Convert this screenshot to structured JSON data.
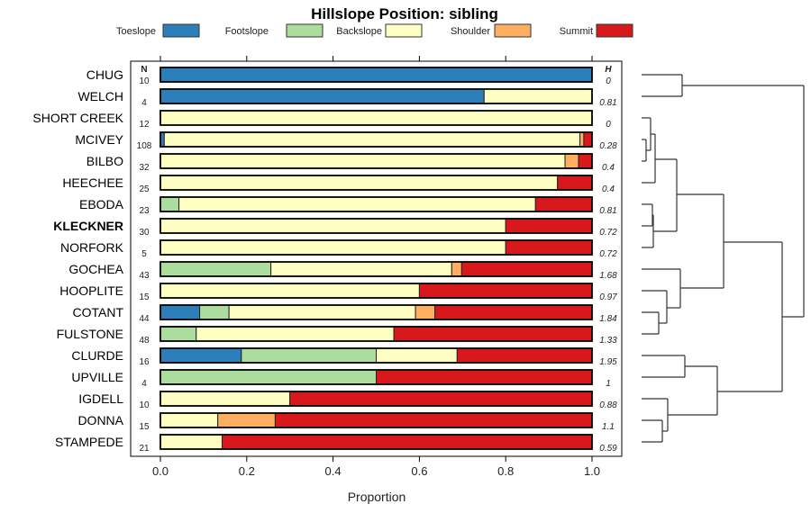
{
  "chart_data": {
    "type": "bar",
    "orientation": "horizontal-stacked",
    "title": "Hillslope Position: sibling",
    "xlabel": "Proportion",
    "xlim": [
      0,
      1
    ],
    "x_ticks": [
      "0.0",
      "0.2",
      "0.4",
      "0.6",
      "0.8",
      "1.0"
    ],
    "n_header": "N",
    "h_header": "H",
    "legend_position": "top",
    "series": [
      {
        "name": "Toeslope",
        "color": "#2C7FB8"
      },
      {
        "name": "Footslope",
        "color": "#ADDD9E"
      },
      {
        "name": "Backslope",
        "color": "#FFFFC4"
      },
      {
        "name": "Shoulder",
        "color": "#FDAE61"
      },
      {
        "name": "Summit",
        "color": "#D7191C"
      }
    ],
    "rows": [
      {
        "name": "CHUG",
        "n": "10",
        "h": "0",
        "values": [
          1,
          0,
          0,
          0,
          0
        ]
      },
      {
        "name": "WELCH",
        "n": "4",
        "h": "0.81",
        "values": [
          0.75,
          0,
          0.25,
          0,
          0
        ]
      },
      {
        "name": "SHORT CREEK",
        "n": "12",
        "h": "0",
        "values": [
          0,
          0,
          1,
          0,
          0
        ]
      },
      {
        "name": "MCIVEY",
        "n": "108",
        "h": "0.28",
        "values": [
          0.009,
          0,
          0.963,
          0.009,
          0.019
        ]
      },
      {
        "name": "BILBO",
        "n": "32",
        "h": "0.4",
        "values": [
          0,
          0,
          0.9375,
          0.03125,
          0.03125
        ]
      },
      {
        "name": "HEECHEE",
        "n": "25",
        "h": "0.4",
        "values": [
          0,
          0,
          0.92,
          0,
          0.08
        ]
      },
      {
        "name": "EBODA",
        "n": "23",
        "h": "0.81",
        "values": [
          0,
          0.043,
          0.826,
          0,
          0.131
        ]
      },
      {
        "name": "KLECKNER",
        "n": "30",
        "h": "0.72",
        "values": [
          0,
          0,
          0.8,
          0,
          0.2
        ],
        "bold": true
      },
      {
        "name": "NORFORK",
        "n": "5",
        "h": "0.72",
        "values": [
          0,
          0,
          0.8,
          0,
          0.2
        ]
      },
      {
        "name": "GOCHEA",
        "n": "43",
        "h": "1.68",
        "values": [
          0,
          0.256,
          0.419,
          0.023,
          0.302
        ]
      },
      {
        "name": "HOOPLITE",
        "n": "15",
        "h": "0.97",
        "values": [
          0,
          0,
          0.6,
          0,
          0.4
        ]
      },
      {
        "name": "COTANT",
        "n": "44",
        "h": "1.84",
        "values": [
          0.091,
          0.068,
          0.432,
          0.045,
          0.364
        ]
      },
      {
        "name": "FULSTONE",
        "n": "48",
        "h": "1.33",
        "values": [
          0,
          0.083,
          0.458,
          0,
          0.459
        ]
      },
      {
        "name": "CLURDE",
        "n": "16",
        "h": "1.95",
        "values": [
          0.1875,
          0.3125,
          0.1875,
          0,
          0.3125
        ]
      },
      {
        "name": "UPVILLE",
        "n": "4",
        "h": "1",
        "values": [
          0,
          0.5,
          0,
          0,
          0.5
        ]
      },
      {
        "name": "IGDELL",
        "n": "10",
        "h": "0.88",
        "values": [
          0,
          0,
          0.3,
          0,
          0.7
        ]
      },
      {
        "name": "DONNA",
        "n": "15",
        "h": "1.1",
        "values": [
          0,
          0,
          0.133,
          0.133,
          0.734
        ]
      },
      {
        "name": "STAMPEDE",
        "n": "21",
        "h": "0.59",
        "values": [
          0,
          0,
          0.143,
          0,
          0.857
        ]
      }
    ]
  }
}
